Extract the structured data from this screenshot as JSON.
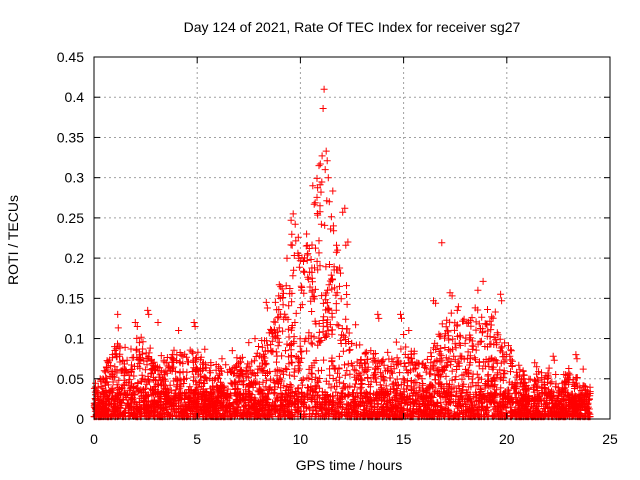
{
  "chart_data": {
    "type": "scatter",
    "title": "Day 124 of 2021, Rate Of TEC Index for receiver sg27",
    "xlabel": "GPS time / hours",
    "ylabel": "ROTI / TECUs",
    "xlim": [
      0,
      25
    ],
    "ylim": [
      0,
      0.45
    ],
    "x_ticks": [
      0,
      5,
      10,
      15,
      20,
      25
    ],
    "y_ticks": [
      0,
      0.05,
      0.1,
      0.15,
      0.2,
      0.25,
      0.3,
      0.35,
      0.4,
      0.45
    ],
    "x_tick_labels": [
      "0",
      "5",
      "10",
      "15",
      "20",
      "25"
    ],
    "y_tick_labels": [
      "0",
      "0.05",
      "0.1",
      "0.15",
      "0.2",
      "0.25",
      "0.3",
      "0.35",
      "0.4",
      "0.45"
    ],
    "grid": true,
    "marker": "+",
    "color": "#ff0000",
    "envelope": {
      "x": [
        0,
        0.5,
        1.2,
        1.5,
        2.5,
        3.0,
        4.0,
        5.0,
        6.0,
        7.0,
        8.0,
        8.5,
        9.0,
        9.5,
        10.0,
        10.5,
        11.0,
        11.5,
        12.0,
        12.5,
        13.0,
        14.0,
        15.0,
        16.0,
        16.5,
        17.0,
        18.0,
        18.5,
        19.0,
        19.5,
        20.0,
        21.0,
        22.0,
        22.5,
        23.0,
        24.0
      ],
      "y": [
        0.04,
        0.06,
        0.11,
        0.08,
        0.11,
        0.07,
        0.08,
        0.09,
        0.06,
        0.07,
        0.09,
        0.12,
        0.16,
        0.22,
        0.23,
        0.24,
        0.3,
        0.26,
        0.21,
        0.12,
        0.08,
        0.08,
        0.09,
        0.07,
        0.09,
        0.12,
        0.14,
        0.13,
        0.14,
        0.12,
        0.09,
        0.05,
        0.06,
        0.05,
        0.06,
        0.04
      ]
    },
    "series": [
      {
        "name": "ROTI",
        "points": [
          [
            11.15,
            0.41
          ],
          [
            11.1,
            0.386
          ],
          [
            11.25,
            0.333
          ],
          [
            11.05,
            0.327
          ],
          [
            11.3,
            0.321
          ],
          [
            11.2,
            0.31
          ],
          [
            10.9,
            0.315
          ],
          [
            11.35,
            0.3
          ],
          [
            10.6,
            0.29
          ],
          [
            11.0,
            0.282
          ],
          [
            12.15,
            0.262
          ],
          [
            12.05,
            0.257
          ],
          [
            9.65,
            0.255
          ],
          [
            9.55,
            0.247
          ],
          [
            10.95,
            0.265
          ],
          [
            11.4,
            0.27
          ],
          [
            11.6,
            0.24
          ],
          [
            10.3,
            0.23
          ],
          [
            9.75,
            0.242
          ],
          [
            9.9,
            0.226
          ],
          [
            12.2,
            0.216
          ],
          [
            12.3,
            0.22
          ],
          [
            11.8,
            0.21
          ],
          [
            16.85,
            0.219
          ],
          [
            18.85,
            0.171
          ],
          [
            18.6,
            0.16
          ],
          [
            19.7,
            0.155
          ],
          [
            19.75,
            0.147
          ],
          [
            17.25,
            0.157
          ],
          [
            17.35,
            0.153
          ],
          [
            16.45,
            0.147
          ],
          [
            16.55,
            0.144
          ],
          [
            17.6,
            0.135
          ],
          [
            8.35,
            0.145
          ],
          [
            8.4,
            0.138
          ],
          [
            8.95,
            0.153
          ],
          [
            2.6,
            0.135
          ],
          [
            2.65,
            0.13
          ],
          [
            1.15,
            0.13
          ],
          [
            3.1,
            0.12
          ],
          [
            2.0,
            0.12
          ],
          [
            2.1,
            0.115
          ],
          [
            4.85,
            0.12
          ],
          [
            4.9,
            0.115
          ],
          [
            4.1,
            0.11
          ],
          [
            13.75,
            0.13
          ],
          [
            13.8,
            0.125
          ],
          [
            14.85,
            0.13
          ],
          [
            14.9,
            0.125
          ],
          [
            15.25,
            0.11
          ],
          [
            15.0,
            0.105
          ],
          [
            7.5,
            0.095
          ],
          [
            7.8,
            0.1
          ],
          [
            8.6,
            0.11
          ],
          [
            6.7,
            0.085
          ],
          [
            6.2,
            0.075
          ],
          [
            5.3,
            0.07
          ],
          [
            5.6,
            0.06
          ],
          [
            0.7,
            0.07
          ],
          [
            0.9,
            0.08
          ],
          [
            1.0,
            0.09
          ],
          [
            0.3,
            0.05
          ],
          [
            0.5,
            0.06
          ],
          [
            3.8,
            0.08
          ],
          [
            3.5,
            0.07
          ],
          [
            21.35,
            0.07
          ],
          [
            21.45,
            0.065
          ],
          [
            22.25,
            0.078
          ],
          [
            22.3,
            0.073
          ],
          [
            23.35,
            0.08
          ],
          [
            23.4,
            0.075
          ],
          [
            23.7,
            0.062
          ],
          [
            20.5,
            0.045
          ],
          [
            20.8,
            0.05
          ],
          [
            23.9,
            0.035
          ],
          [
            24.0,
            0.025
          ]
        ]
      }
    ]
  }
}
